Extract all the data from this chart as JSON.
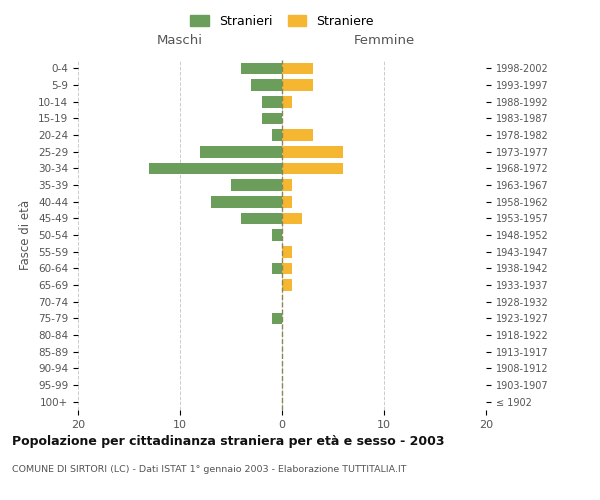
{
  "age_groups": [
    "100+",
    "95-99",
    "90-94",
    "85-89",
    "80-84",
    "75-79",
    "70-74",
    "65-69",
    "60-64",
    "55-59",
    "50-54",
    "45-49",
    "40-44",
    "35-39",
    "30-34",
    "25-29",
    "20-24",
    "15-19",
    "10-14",
    "5-9",
    "0-4"
  ],
  "birth_years": [
    "≤ 1902",
    "1903-1907",
    "1908-1912",
    "1913-1917",
    "1918-1922",
    "1923-1927",
    "1928-1932",
    "1933-1937",
    "1938-1942",
    "1943-1947",
    "1948-1952",
    "1953-1957",
    "1958-1962",
    "1963-1967",
    "1968-1972",
    "1973-1977",
    "1978-1982",
    "1983-1987",
    "1988-1992",
    "1993-1997",
    "1998-2002"
  ],
  "maschi": [
    0,
    0,
    0,
    0,
    0,
    1,
    0,
    0,
    1,
    0,
    1,
    4,
    7,
    5,
    13,
    8,
    1,
    2,
    2,
    3,
    4
  ],
  "femmine": [
    0,
    0,
    0,
    0,
    0,
    0,
    0,
    1,
    1,
    1,
    0,
    2,
    1,
    1,
    6,
    6,
    3,
    0,
    1,
    3,
    3
  ],
  "maschi_color": "#6a9e5a",
  "femmine_color": "#f5b731",
  "title": "Popolazione per cittadinanza straniera per età e sesso - 2003",
  "subtitle": "COMUNE DI SIRTORI (LC) - Dati ISTAT 1° gennaio 2003 - Elaborazione TUTTITALIA.IT",
  "xlabel_left": "Maschi",
  "xlabel_right": "Femmine",
  "ylabel_left": "Fasce di età",
  "legend_stranieri": "Stranieri",
  "legend_straniere": "Straniere",
  "xlim": 20,
  "background_color": "#ffffff",
  "grid_color": "#cccccc",
  "text_color": "#555555"
}
